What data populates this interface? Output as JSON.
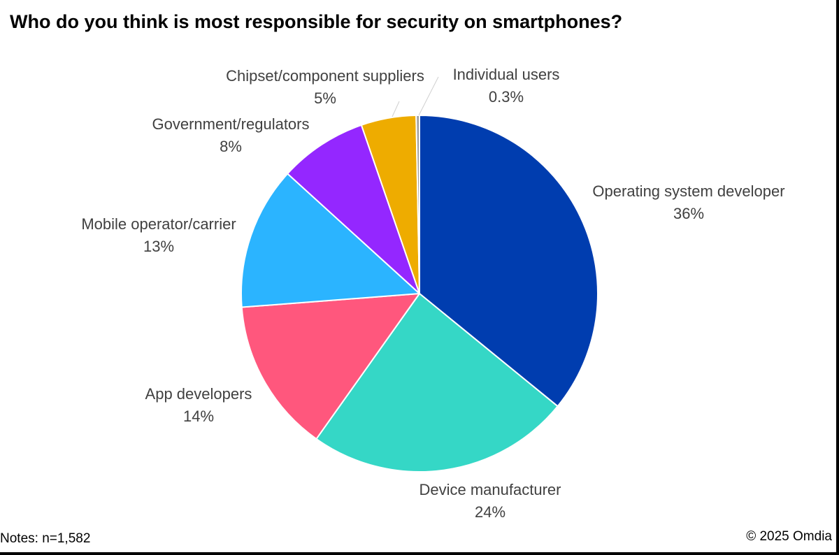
{
  "chart_data": {
    "type": "pie",
    "title": "Who do you think is most responsible for security on smartphones?",
    "slices": [
      {
        "label": "Operating system developer",
        "value_label": "36%",
        "value": 36,
        "color": "#003DAF"
      },
      {
        "label": "Device manufacturer",
        "value_label": "24%",
        "value": 24,
        "color": "#35D7C6"
      },
      {
        "label": "App developers",
        "value_label": "14%",
        "value": 14,
        "color": "#FF577D"
      },
      {
        "label": "Mobile operator/carrier",
        "value_label": "13%",
        "value": 13,
        "color": "#2BB4FF"
      },
      {
        "label": "Government/regulators",
        "value_label": "8%",
        "value": 8,
        "color": "#9427FF"
      },
      {
        "label": "Chipset/component suppliers",
        "value_label": "5%",
        "value": 5,
        "color": "#EEAC00"
      },
      {
        "label": "Individual users",
        "value_label": "0.3%",
        "value": 0.3,
        "color": "#9E9E9E"
      }
    ]
  },
  "notes": "Notes: n=1,582",
  "source": "© 2025 Omdia"
}
